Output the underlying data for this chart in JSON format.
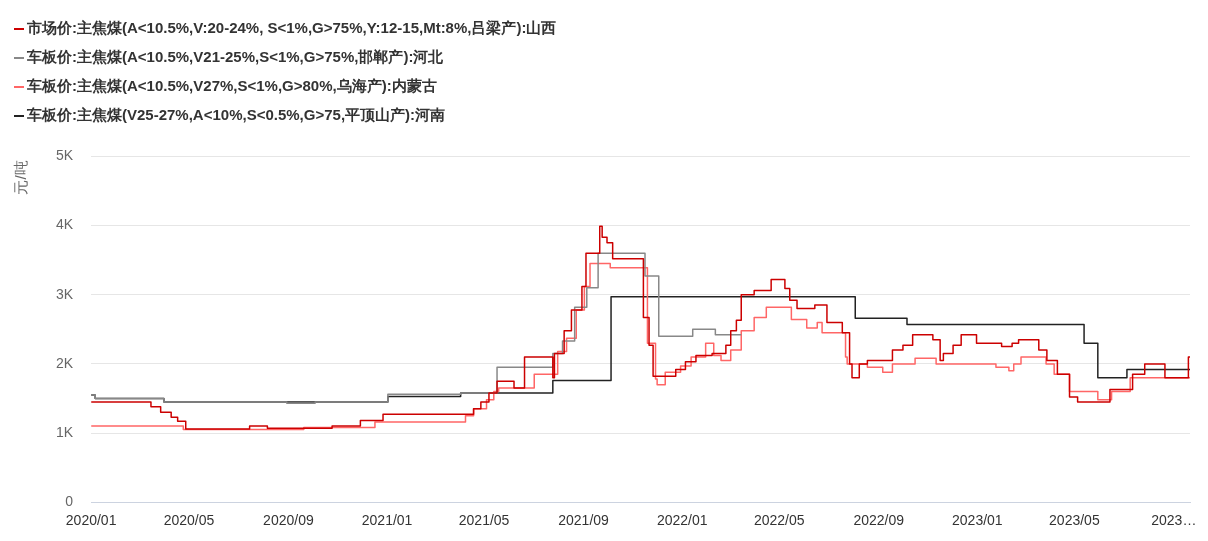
{
  "chart_data": {
    "type": "step",
    "ylabel": "元/吨",
    "legend": "top left",
    "grid": "y",
    "marker": "none",
    "xlim": [
      "2020-01-01",
      "2023-09-21"
    ],
    "xticks": [
      {
        "value": "2020-01",
        "label": "2020/01"
      },
      {
        "value": "2020-05",
        "label": "2020/05"
      },
      {
        "value": "2020-09",
        "label": "2020/09"
      },
      {
        "value": "2021-01",
        "label": "2021/01"
      },
      {
        "value": "2021-05",
        "label": "2021/05"
      },
      {
        "value": "2021-09",
        "label": "2021/09"
      },
      {
        "value": "2022-01",
        "label": "2022/01"
      },
      {
        "value": "2022-05",
        "label": "2022/05"
      },
      {
        "value": "2022-09",
        "label": "2022/09"
      },
      {
        "value": "2023-01",
        "label": "2023/01"
      },
      {
        "value": "2023-05",
        "label": "2023/05"
      },
      {
        "value": "2023-09",
        "label": "2023…"
      }
    ],
    "ylim": [
      0,
      5000
    ],
    "yticks": [
      {
        "value": 0,
        "label": "0"
      },
      {
        "value": 1000,
        "label": "1K"
      },
      {
        "value": 2000,
        "label": "2K"
      },
      {
        "value": 3000,
        "label": "3K"
      },
      {
        "value": 4000,
        "label": "4K"
      },
      {
        "value": 5000,
        "label": "5K"
      }
    ],
    "series": [
      {
        "name": "市场价:主焦煤(A<10.5%,V:20-24%, S<1%,G>75%,Y:12-15,Mt:8%,吕梁产):山西",
        "color": "#cc0000",
        "x": [
          "2020-01-01",
          "2020-03-15",
          "2020-03-27",
          "2020-04-09",
          "2020-04-17",
          "2020-04-27",
          "2020-07-15",
          "2020-08-06",
          "2020-10-25",
          "2020-11-29",
          "2020-12-27",
          "2021-04-18",
          "2021-04-27",
          "2021-05-07",
          "2021-05-17",
          "2021-06-07",
          "2021-06-20",
          "2021-07-25",
          "2021-07-27",
          "2021-08-08",
          "2021-08-17",
          "2021-08-30",
          "2021-09-04",
          "2021-09-21",
          "2021-09-24",
          "2021-09-30",
          "2021-10-07",
          "2021-11-14",
          "2021-11-21",
          "2021-11-26",
          "2021-12-24",
          "2022-01-05",
          "2022-01-18",
          "2022-02-07",
          "2022-02-24",
          "2022-03-02",
          "2022-03-09",
          "2022-03-15",
          "2022-03-31",
          "2022-04-21",
          "2022-05-08",
          "2022-05-14",
          "2022-05-23",
          "2022-06-14",
          "2022-06-29",
          "2022-07-18",
          "2022-07-27",
          "2022-07-30",
          "2022-08-08",
          "2022-08-18",
          "2022-09-18",
          "2022-10-01",
          "2022-10-13",
          "2022-11-07",
          "2022-11-16",
          "2022-11-20",
          "2022-12-02",
          "2022-12-12",
          "2022-12-31",
          "2023-01-31",
          "2023-02-13",
          "2023-02-21",
          "2023-03-18",
          "2023-03-28",
          "2023-04-10",
          "2023-04-25",
          "2023-05-05",
          "2023-06-14",
          "2023-07-12",
          "2023-07-27",
          "2023-08-21",
          "2023-09-19",
          "2023-09-21"
        ],
        "values": [
          1450,
          1380,
          1300,
          1230,
          1170,
          1060,
          1100,
          1070,
          1100,
          1180,
          1270,
          1350,
          1450,
          1580,
          1750,
          1650,
          2100,
          1800,
          2150,
          2480,
          2780,
          3120,
          3600,
          3990,
          3830,
          3750,
          3520,
          2670,
          2270,
          1820,
          1920,
          2030,
          2120,
          2150,
          2270,
          2480,
          2630,
          3000,
          3060,
          3220,
          3090,
          2920,
          2800,
          2850,
          2600,
          2450,
          2000,
          1800,
          2000,
          2050,
          2200,
          2270,
          2420,
          2350,
          2050,
          2150,
          2270,
          2420,
          2300,
          2250,
          2300,
          2350,
          2200,
          2050,
          1850,
          1520,
          1450,
          1630,
          1850,
          2000,
          1800,
          2100,
          2100
        ]
      },
      {
        "name": "车板价:主焦煤(A<10.5%,V21-25%,S<1%,G>75%,邯郸产):河北",
        "color": "#888888",
        "x": [
          "2020-01-01",
          "2020-01-06",
          "2020-03-31",
          "2020-08-30",
          "2020-10-04",
          "2021-01-02",
          "2021-04-02",
          "2021-05-17",
          "2021-07-25",
          "2021-08-06",
          "2021-08-21",
          "2021-09-05",
          "2021-09-19",
          "2021-11-16",
          "2021-12-03",
          "2022-01-14",
          "2022-02-11",
          "2022-03-15"
        ],
        "values": [
          1550,
          1500,
          1450,
          1430,
          1450,
          1560,
          1580,
          1950,
          2150,
          2330,
          2820,
          3100,
          3600,
          3270,
          2400,
          2500,
          2420,
          2420
        ]
      },
      {
        "name": "车板价:主焦煤(A<10.5%,V27%,S<1%,G>80%,乌海产):内蒙古",
        "color": "#ff6666",
        "x": [
          "2020-01-01",
          "2020-04-24",
          "2020-09-20",
          "2020-12-17",
          "2021-04-08",
          "2021-04-18",
          "2021-05-04",
          "2021-05-13",
          "2021-05-19",
          "2021-07-02",
          "2021-07-31",
          "2021-08-11",
          "2021-08-23",
          "2021-09-02",
          "2021-09-09",
          "2021-10-04",
          "2021-11-19",
          "2021-11-29",
          "2021-12-01",
          "2021-12-11",
          "2021-12-30",
          "2022-01-12",
          "2022-01-30",
          "2022-02-09",
          "2022-02-18",
          "2022-03-02",
          "2022-03-15",
          "2022-03-31",
          "2022-04-15",
          "2022-05-16",
          "2022-06-04",
          "2022-06-17",
          "2022-06-23",
          "2022-07-22",
          "2022-07-24",
          "2022-08-18",
          "2022-09-06",
          "2022-09-18",
          "2022-10-16",
          "2022-11-11",
          "2023-01-24",
          "2023-02-09",
          "2023-02-15",
          "2023-02-24",
          "2023-03-27",
          "2023-04-06",
          "2023-04-25",
          "2023-05-30",
          "2023-06-16",
          "2023-07-09",
          "2023-09-21"
        ],
        "values": [
          1100,
          1050,
          1080,
          1160,
          1250,
          1350,
          1480,
          1600,
          1650,
          1850,
          2180,
          2370,
          2780,
          3120,
          3450,
          3390,
          2300,
          1780,
          1700,
          1880,
          1970,
          2100,
          2300,
          2120,
          2050,
          2200,
          2480,
          2670,
          2820,
          2640,
          2520,
          2600,
          2450,
          2100,
          2000,
          1950,
          1880,
          2000,
          2080,
          2000,
          1950,
          1900,
          2000,
          2100,
          2000,
          1850,
          1600,
          1480,
          1600,
          1800,
          1800
        ]
      },
      {
        "name": "车板价:主焦煤(V25-27%,A<10%,S<0.5%,G>75,平顶山产):河南",
        "color": "#222222",
        "x": [
          "2020-01-01",
          "2020-01-06",
          "2020-03-31",
          "2021-01-02",
          "2021-04-02",
          "2021-07-25",
          "2021-10-05",
          "2022-08-03",
          "2022-10-06",
          "2023-05-13",
          "2023-05-30",
          "2023-07-05",
          "2023-09-21"
        ],
        "values": [
          1550,
          1500,
          1450,
          1530,
          1580,
          1760,
          2970,
          2660,
          2570,
          2300,
          1800,
          1920,
          1920
        ]
      }
    ]
  }
}
